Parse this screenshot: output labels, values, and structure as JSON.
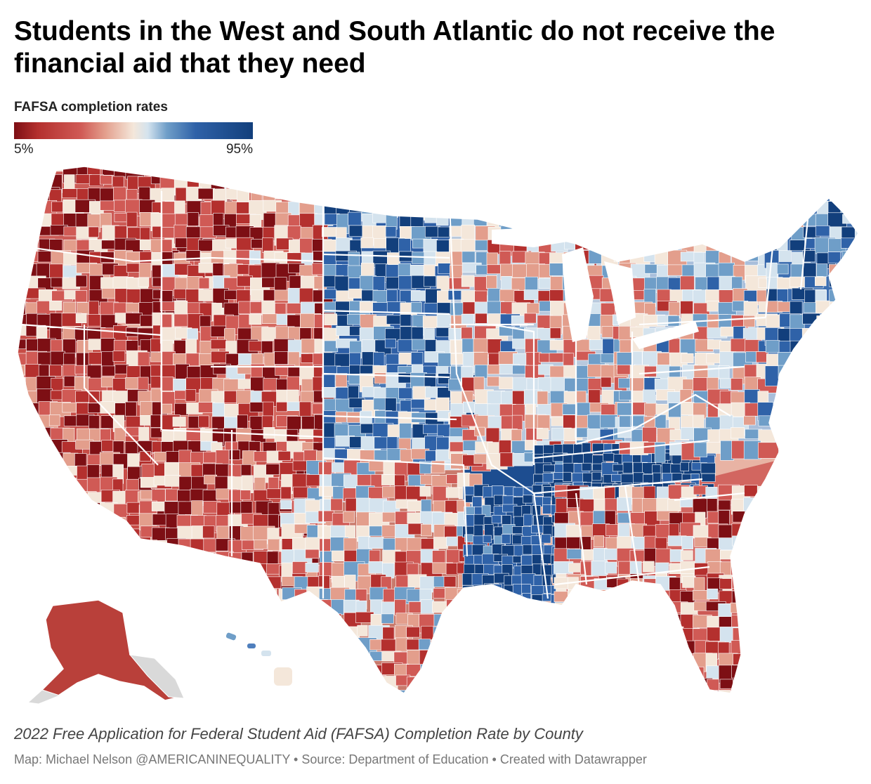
{
  "header": {
    "title": "Students in the West and South Atlantic do not receive the financial aid that they need"
  },
  "legend": {
    "title": "FAFSA completion rates",
    "min_label": "5%",
    "max_label": "95%",
    "scale": {
      "min": 5,
      "max": 95,
      "colors": [
        "#7d0f14",
        "#b4302e",
        "#d05a55",
        "#e39e8c",
        "#f4e7da",
        "#d4e3ee",
        "#6f9ec8",
        "#2f62a8",
        "#123f7c"
      ]
    }
  },
  "map": {
    "type": "choropleth",
    "geography": "US counties",
    "no_data_color": "#d9d9d9",
    "regions": [
      {
        "id": "pacific-northwest",
        "rate": 28
      },
      {
        "id": "california-nevada",
        "rate": 25
      },
      {
        "id": "mountain-west",
        "rate": 30
      },
      {
        "id": "southwest",
        "rate": 27
      },
      {
        "id": "northern-plains",
        "rate": 72
      },
      {
        "id": "central-plains",
        "rate": 68
      },
      {
        "id": "texas",
        "rate": 45
      },
      {
        "id": "upper-midwest",
        "rate": 48
      },
      {
        "id": "tennessee",
        "rate": 90
      },
      {
        "id": "louisiana-arkansas",
        "rate": 84
      },
      {
        "id": "southeast",
        "rate": 38
      },
      {
        "id": "florida",
        "rate": 30
      },
      {
        "id": "mid-atlantic",
        "rate": 52
      },
      {
        "id": "new-england",
        "rate": 70
      },
      {
        "id": "alaska",
        "rate": 18
      },
      {
        "id": "hawaii",
        "rate": 55
      }
    ]
  },
  "footer": {
    "notes": "2022 Free Application for Federal Student Aid (FAFSA) Completion Rate by County",
    "source": "Map: Michael Nelson @AMERICANINEQUALITY • Source: Department of Education • Created with Datawrapper"
  }
}
